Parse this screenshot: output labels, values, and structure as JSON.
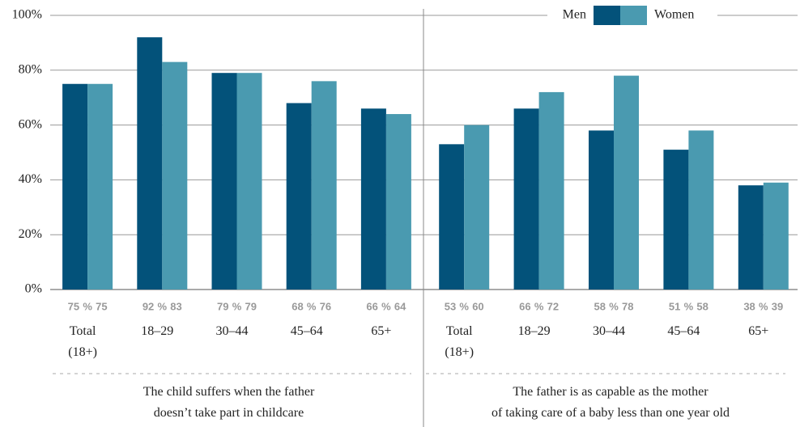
{
  "chart_data": {
    "type": "bar",
    "categories": [
      "Total\n(18+)",
      "18–29",
      "30–44",
      "45–64",
      "65+",
      "Total\n(18+)",
      "18–29",
      "30–44",
      "45–64",
      "65+"
    ],
    "series": [
      {
        "name": "Men",
        "color": "#03527a",
        "values": [
          75,
          92,
          79,
          68,
          66,
          53,
          66,
          58,
          51,
          38
        ]
      },
      {
        "name": "Women",
        "color": "#4a9ab0",
        "values": [
          75,
          83,
          79,
          76,
          64,
          60,
          72,
          78,
          58,
          39
        ]
      }
    ],
    "value_label_separator": "%",
    "group_labels": [
      "The child suffers when the father\ndoesn’t take part in childcare",
      "The father is as capable as the mother\nof taking care of a baby less than one year old"
    ],
    "ylim": [
      0,
      100
    ],
    "yticks": [
      {
        "value": 0,
        "label": "0%"
      },
      {
        "value": 20,
        "label": "20%"
      },
      {
        "value": 40,
        "label": "40%"
      },
      {
        "value": 60,
        "label": "60%"
      },
      {
        "value": 80,
        "label": "80%"
      },
      {
        "value": 100,
        "label": "100%"
      }
    ],
    "grid": true,
    "legend": "top-right"
  }
}
